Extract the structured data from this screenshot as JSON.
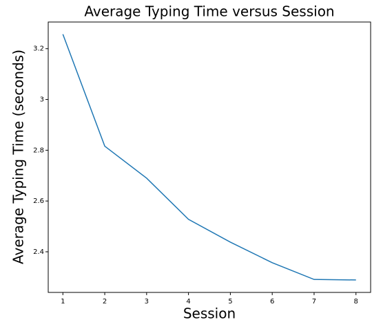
{
  "chart_data": {
    "type": "line",
    "title": "Average Typing Time versus Session",
    "x_label": "Session",
    "y_label": "Average Typing Time (seconds)",
    "x": [
      1,
      2,
      3,
      4,
      5,
      6,
      7,
      8
    ],
    "series": [
      {
        "name": "Average Typing Time",
        "color": "#1f77b4",
        "values": [
          3.257,
          2.816,
          2.69,
          2.528,
          2.438,
          2.357,
          2.291,
          2.289
        ]
      }
    ],
    "xlim": [
      0.65,
      8.35
    ],
    "xticks": [
      1,
      2,
      3,
      4,
      5,
      6,
      7,
      8
    ],
    "ylim": [
      2.24,
      3.305
    ],
    "yticks": [
      2.4,
      2.6,
      2.8,
      3.0,
      3.2
    ]
  }
}
